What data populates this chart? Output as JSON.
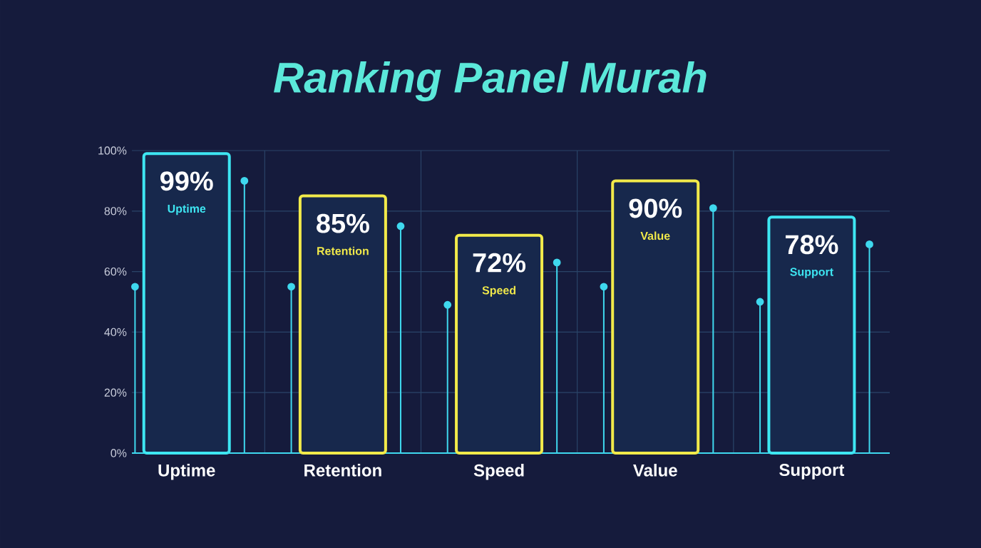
{
  "chart_data": {
    "type": "bar",
    "title": "Ranking Panel Murah",
    "categories": [
      "Uptime",
      "Retention",
      "Speed",
      "Value",
      "Support"
    ],
    "ylim": [
      0,
      100
    ],
    "yticks": [
      {
        "value": 0,
        "label": "0%"
      },
      {
        "value": 20,
        "label": "20%"
      },
      {
        "value": 40,
        "label": "40%"
      },
      {
        "value": 60,
        "label": "60%"
      },
      {
        "value": 80,
        "label": "80%"
      },
      {
        "value": 100,
        "label": "100%"
      }
    ],
    "grid": true,
    "series": [
      {
        "colors": [
          "#3ee6f2",
          "#f2ea4a",
          "#f2ea4a",
          "#f2ea4a",
          "#3ee6f2"
        ],
        "values": [
          99,
          85,
          72,
          90,
          78
        ],
        "value_labels": [
          "99%",
          "85%",
          "72%",
          "90%",
          "78%"
        ]
      },
      {
        "type": "lollipop",
        "color": "#3fd8ee",
        "values": [
          55,
          55,
          49,
          55,
          50
        ]
      },
      {
        "type": "lollipop",
        "color": "#3fd8ee",
        "values": [
          90,
          75,
          63,
          81,
          69
        ]
      }
    ]
  }
}
